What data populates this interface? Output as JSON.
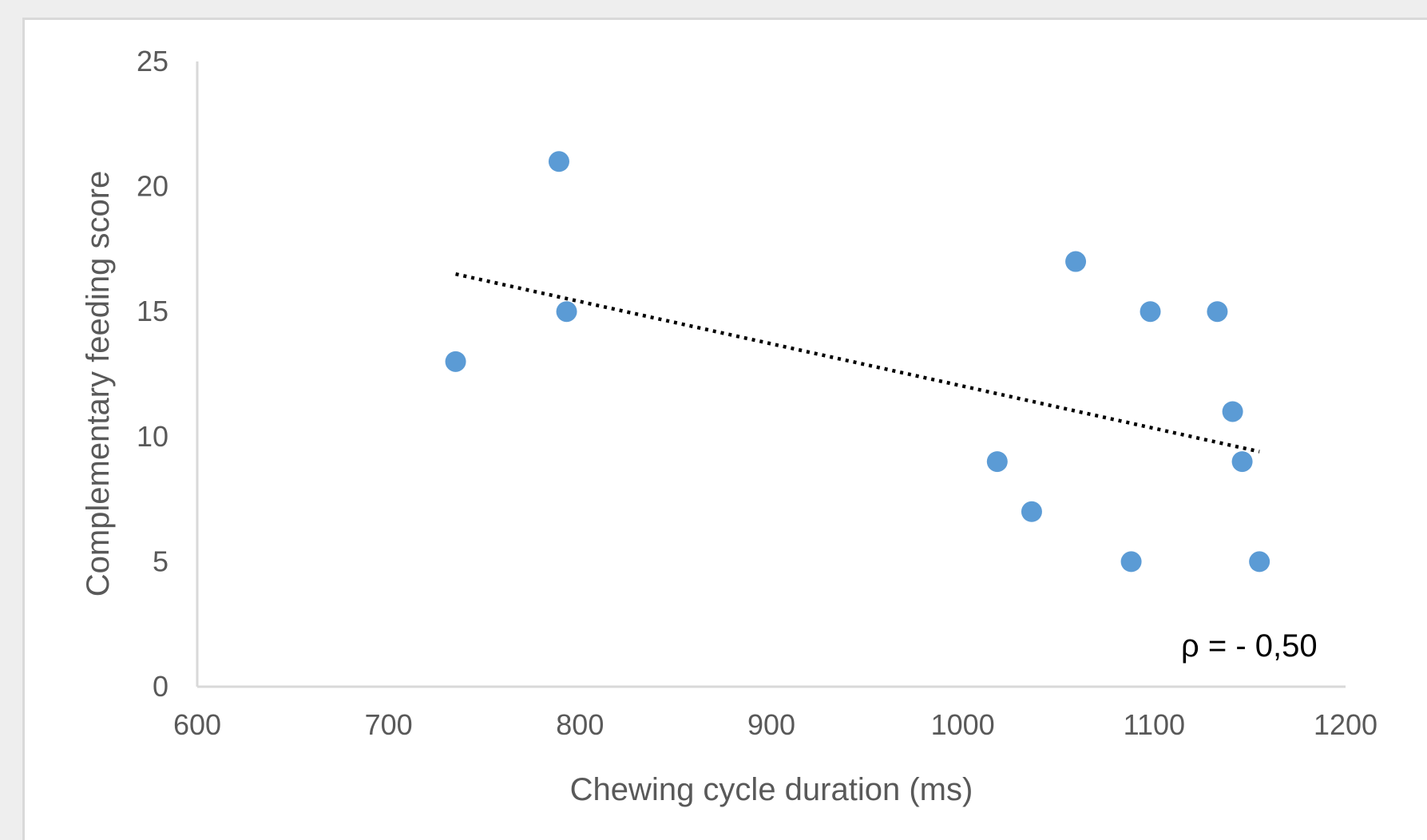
{
  "chart_data": {
    "type": "scatter",
    "xlabel": "Chewing cycle duration (ms)",
    "ylabel": "Complementary feeding score",
    "xlim": [
      600,
      1200
    ],
    "ylim": [
      0,
      25
    ],
    "x_ticks": [
      600,
      700,
      800,
      900,
      1000,
      1100,
      1200
    ],
    "y_ticks": [
      0,
      5,
      10,
      15,
      20,
      25
    ],
    "grid": false,
    "legend": "none",
    "colors": {
      "marker": "#5b9bd5",
      "axis": "#d9d9d9",
      "trendline": "#000000"
    },
    "series": [
      {
        "points": [
          {
            "x": 735,
            "y": 13
          },
          {
            "x": 789,
            "y": 21
          },
          {
            "x": 793,
            "y": 15
          },
          {
            "x": 1018,
            "y": 9
          },
          {
            "x": 1036,
            "y": 7
          },
          {
            "x": 1059,
            "y": 17
          },
          {
            "x": 1088,
            "y": 5
          },
          {
            "x": 1098,
            "y": 15
          },
          {
            "x": 1133,
            "y": 15
          },
          {
            "x": 1141,
            "y": 11
          },
          {
            "x": 1146,
            "y": 9
          },
          {
            "x": 1155,
            "y": 5
          }
        ]
      }
    ],
    "trendline": {
      "style": "dotted",
      "from": {
        "x": 735,
        "y": 16.5
      },
      "to": {
        "x": 1155,
        "y": 9.4
      }
    },
    "annotation": "ρ = - 0,50"
  }
}
